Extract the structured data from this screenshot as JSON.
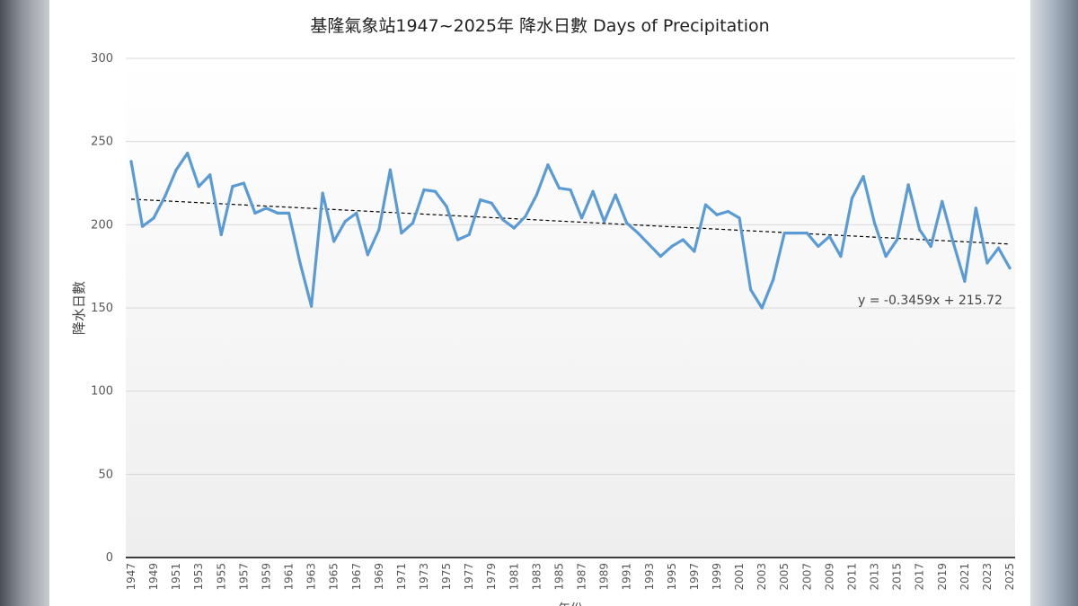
{
  "chart_data": {
    "type": "line",
    "title": "基隆氣象站1947~2025年  降水日數 Days of Precipitation",
    "xlabel": "年份",
    "ylabel": "降水日數",
    "ylim": [
      0,
      300
    ],
    "yticks": [
      0,
      50,
      100,
      150,
      200,
      250,
      300
    ],
    "grid": true,
    "series_color": "#5b9bd5",
    "x": [
      1947,
      1948,
      1949,
      1950,
      1951,
      1952,
      1953,
      1954,
      1955,
      1956,
      1957,
      1958,
      1959,
      1960,
      1961,
      1962,
      1963,
      1964,
      1965,
      1966,
      1967,
      1968,
      1969,
      1970,
      1971,
      1972,
      1973,
      1974,
      1975,
      1976,
      1977,
      1978,
      1979,
      1980,
      1981,
      1982,
      1983,
      1984,
      1985,
      1986,
      1987,
      1988,
      1989,
      1990,
      1991,
      1992,
      1993,
      1994,
      1995,
      1996,
      1997,
      1998,
      1999,
      2000,
      2001,
      2002,
      2003,
      2004,
      2005,
      2006,
      2007,
      2008,
      2009,
      2010,
      2011,
      2012,
      2013,
      2014,
      2015,
      2016,
      2017,
      2018,
      2019,
      2020,
      2021,
      2022,
      2023,
      2024,
      2025
    ],
    "xticks": [
      1947,
      1949,
      1951,
      1953,
      1955,
      1957,
      1959,
      1961,
      1963,
      1965,
      1967,
      1969,
      1971,
      1973,
      1975,
      1977,
      1979,
      1981,
      1983,
      1985,
      1987,
      1989,
      1991,
      1993,
      1995,
      1997,
      1999,
      2001,
      2003,
      2005,
      2007,
      2009,
      2011,
      2013,
      2015,
      2017,
      2019,
      2021,
      2023,
      2025
    ],
    "series": [
      {
        "values": [
          238,
          199,
          204,
          217,
          233,
          243,
          223,
          230,
          194,
          223,
          225,
          207,
          210,
          207,
          207,
          177,
          151,
          219,
          190,
          202,
          207,
          182,
          197,
          233,
          195,
          201,
          221,
          220,
          211,
          191,
          194,
          215,
          213,
          203,
          198,
          205,
          218,
          236,
          222,
          221,
          204,
          220,
          202,
          218,
          201,
          195,
          188,
          181,
          187,
          191,
          184,
          212,
          206,
          208,
          204,
          161,
          150,
          167,
          195,
          195,
          195,
          187,
          193,
          181,
          216,
          229,
          201,
          181,
          191,
          224,
          197,
          187,
          214,
          189,
          166,
          210,
          177,
          186,
          174
        ]
      }
    ],
    "trendline": {
      "equation": "y = -0.3459x + 215.72",
      "slope": -0.3459,
      "intercept": 215.72,
      "style": "dashed",
      "color": "#000000"
    }
  }
}
